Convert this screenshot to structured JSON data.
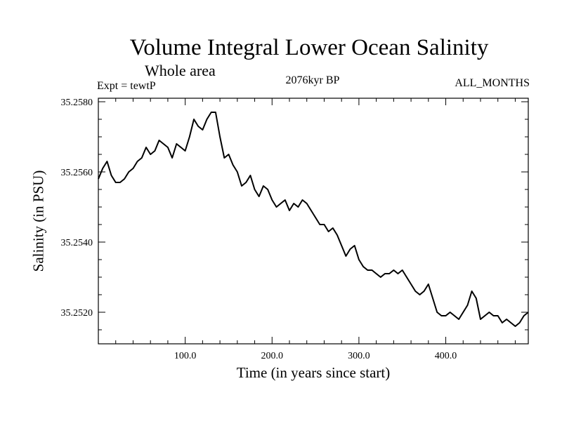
{
  "chart_data": {
    "type": "line",
    "title": "Volume Integral Lower Ocean Salinity",
    "subtitle": "Whole area",
    "experiment_label": "Expt = tewtP",
    "period_label": "2076kyr BP",
    "season_label": "ALL_MONTHS",
    "xlabel": "Time (in years since start)",
    "ylabel": "Salinity (in PSU)",
    "xlim": [
      0,
      495
    ],
    "ylim": [
      35.2511,
      35.2581
    ],
    "xticks": [
      100,
      200,
      300,
      400
    ],
    "xtick_labels": [
      "100.0",
      "200.0",
      "300.0",
      "400.0"
    ],
    "yticks": [
      35.252,
      35.254,
      35.256,
      35.258
    ],
    "ytick_labels": [
      "35.2520",
      "35.2540",
      "35.2560",
      "35.2580"
    ],
    "grid": false,
    "series": [
      {
        "name": "Salinity",
        "x": [
          0,
          5,
          10,
          15,
          20,
          25,
          30,
          35,
          40,
          45,
          50,
          55,
          60,
          65,
          70,
          75,
          80,
          85,
          90,
          95,
          100,
          105,
          110,
          115,
          120,
          125,
          130,
          135,
          140,
          145,
          150,
          155,
          160,
          165,
          170,
          175,
          180,
          185,
          190,
          195,
          200,
          205,
          210,
          215,
          220,
          225,
          230,
          235,
          240,
          245,
          250,
          255,
          260,
          265,
          270,
          275,
          280,
          285,
          290,
          295,
          300,
          305,
          310,
          315,
          320,
          325,
          330,
          335,
          340,
          345,
          350,
          355,
          360,
          365,
          370,
          375,
          380,
          385,
          390,
          395,
          400,
          405,
          410,
          415,
          420,
          425,
          430,
          435,
          440,
          445,
          450,
          455,
          460,
          465,
          470,
          475,
          480,
          485,
          490,
          495
        ],
        "values": [
          35.2558,
          35.2561,
          35.2563,
          35.2559,
          35.2557,
          35.2557,
          35.2558,
          35.256,
          35.2561,
          35.2563,
          35.2564,
          35.2567,
          35.2565,
          35.2566,
          35.2569,
          35.2568,
          35.2567,
          35.2564,
          35.2568,
          35.2567,
          35.2566,
          35.257,
          35.2575,
          35.2573,
          35.2572,
          35.2575,
          35.2577,
          35.2577,
          35.257,
          35.2564,
          35.2565,
          35.2562,
          35.256,
          35.2556,
          35.2557,
          35.2559,
          35.2555,
          35.2553,
          35.2556,
          35.2555,
          35.2552,
          35.255,
          35.2551,
          35.2552,
          35.2549,
          35.2551,
          35.255,
          35.2552,
          35.2551,
          35.2549,
          35.2547,
          35.2545,
          35.2545,
          35.2543,
          35.2544,
          35.2542,
          35.2539,
          35.2536,
          35.2538,
          35.2539,
          35.2535,
          35.2533,
          35.2532,
          35.2532,
          35.2531,
          35.253,
          35.2531,
          35.2531,
          35.2532,
          35.2531,
          35.2532,
          35.253,
          35.2528,
          35.2526,
          35.2525,
          35.2526,
          35.2528,
          35.2524,
          35.252,
          35.2519,
          35.2519,
          35.252,
          35.2519,
          35.2518,
          35.252,
          35.2522,
          35.2526,
          35.2524,
          35.2518,
          35.2519,
          35.252,
          35.2519,
          35.2519,
          35.2517,
          35.2518,
          35.2517,
          35.2516,
          35.2517,
          35.2519,
          35.252
        ]
      }
    ]
  }
}
